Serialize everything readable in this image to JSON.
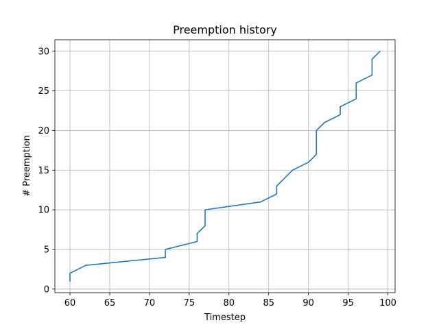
{
  "chart_data": {
    "type": "line",
    "title": "Preemption history",
    "xlabel": "Timestep",
    "ylabel": "# Preemption",
    "xlim": [
      58.1,
      100.9
    ],
    "ylim": [
      -0.45,
      31.45
    ],
    "xticks": [
      60,
      65,
      70,
      75,
      80,
      85,
      90,
      95,
      100
    ],
    "yticks": [
      0,
      5,
      10,
      15,
      20,
      25,
      30
    ],
    "grid": true,
    "series": [
      {
        "color": "#1f77b4",
        "x": [
          60,
          60,
          62,
          72,
          72,
          76,
          76,
          77,
          77,
          84,
          86,
          86,
          88,
          90,
          91,
          91,
          92,
          94,
          94,
          96,
          96,
          98,
          98,
          99
        ],
        "y": [
          1,
          2,
          3,
          4,
          5,
          6,
          7,
          8,
          10,
          11,
          12,
          13,
          15,
          16,
          17,
          20,
          21,
          22,
          23,
          24,
          26,
          27,
          29,
          30
        ]
      }
    ]
  }
}
